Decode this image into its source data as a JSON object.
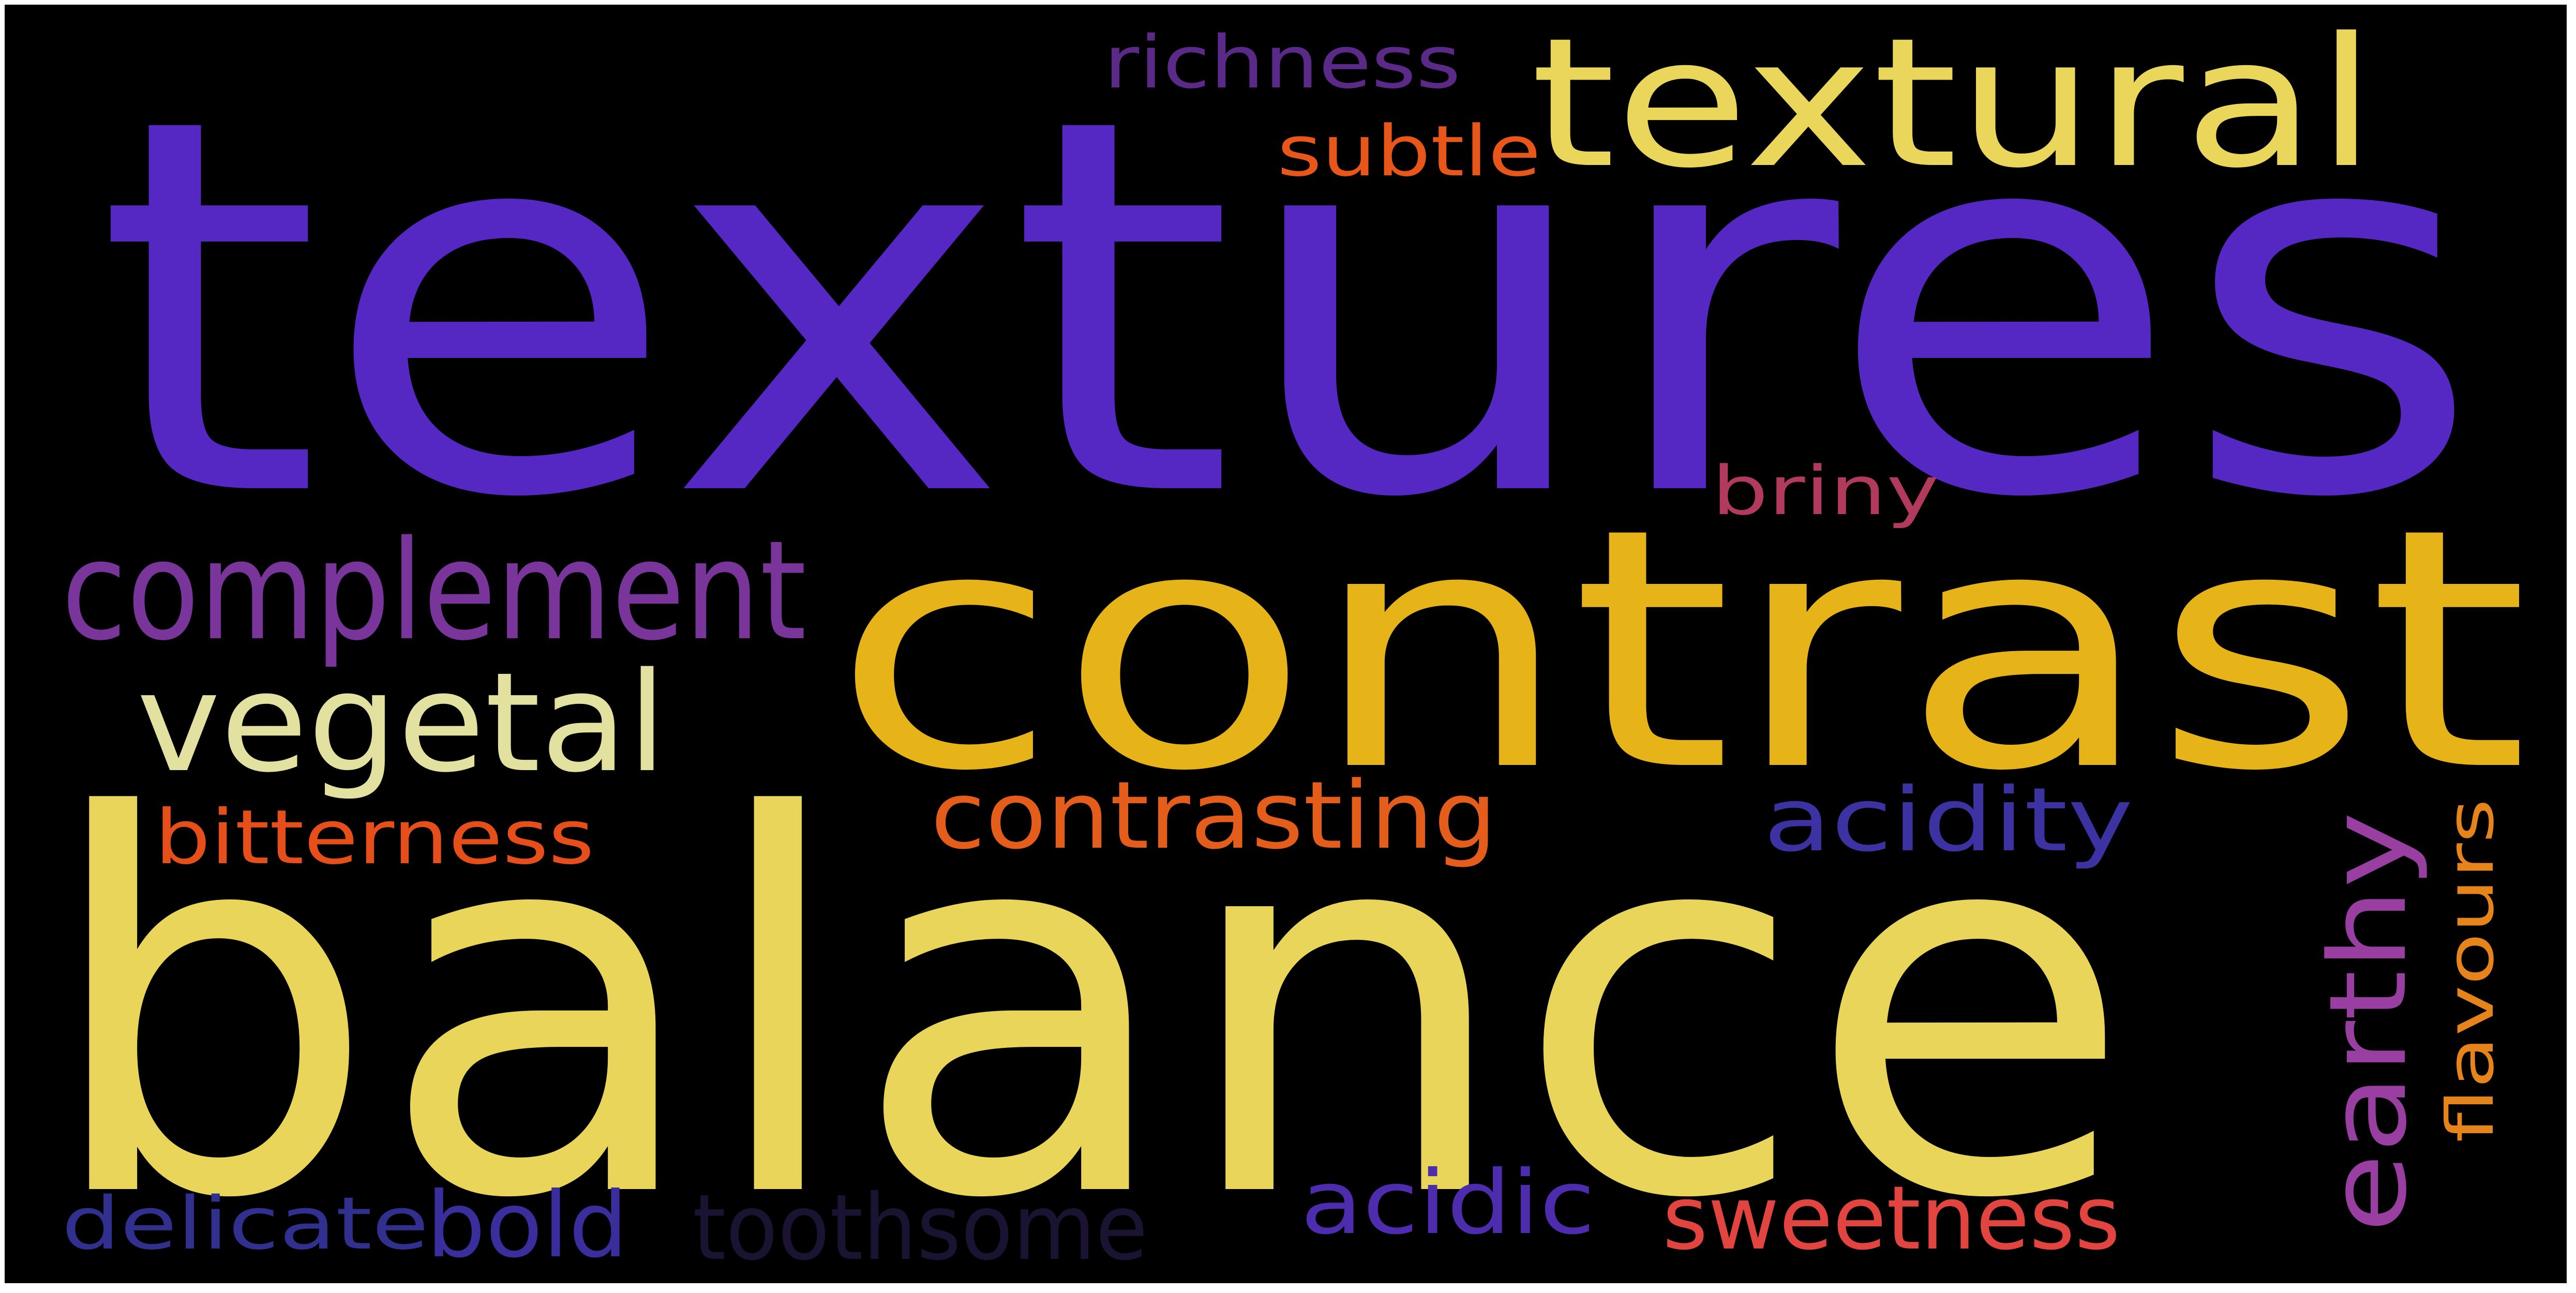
{
  "word_cloud": {
    "background_color": "#000000",
    "words": [
      {
        "text": "textures",
        "color": "#5528c4"
      },
      {
        "text": "balance",
        "color": "#e8d55a"
      },
      {
        "text": "contrast",
        "color": "#e6b419"
      },
      {
        "text": "textural",
        "color": "#ead65a"
      },
      {
        "text": "complement",
        "color": "#7a359a"
      },
      {
        "text": "vegetal",
        "color": "#e2e1a0"
      },
      {
        "text": "earthy",
        "color": "#9a3fa2"
      },
      {
        "text": "contrasting",
        "color": "#e45d1a"
      },
      {
        "text": "acidity",
        "color": "#3d32a2"
      },
      {
        "text": "bitterness",
        "color": "#e64e1a"
      },
      {
        "text": "richness",
        "color": "#5b2a88"
      },
      {
        "text": "subtle",
        "color": "#e8561a"
      },
      {
        "text": "briny",
        "color": "#b23a5c"
      },
      {
        "text": "flavours",
        "color": "#e6841c"
      },
      {
        "text": "acidic",
        "color": "#4d2cae"
      },
      {
        "text": "sweetness",
        "color": "#e2443f"
      },
      {
        "text": "bold",
        "color": "#3a2d9c"
      },
      {
        "text": "delicate",
        "color": "#32308e"
      },
      {
        "text": "toothsome",
        "color": "#1a1332"
      }
    ]
  }
}
